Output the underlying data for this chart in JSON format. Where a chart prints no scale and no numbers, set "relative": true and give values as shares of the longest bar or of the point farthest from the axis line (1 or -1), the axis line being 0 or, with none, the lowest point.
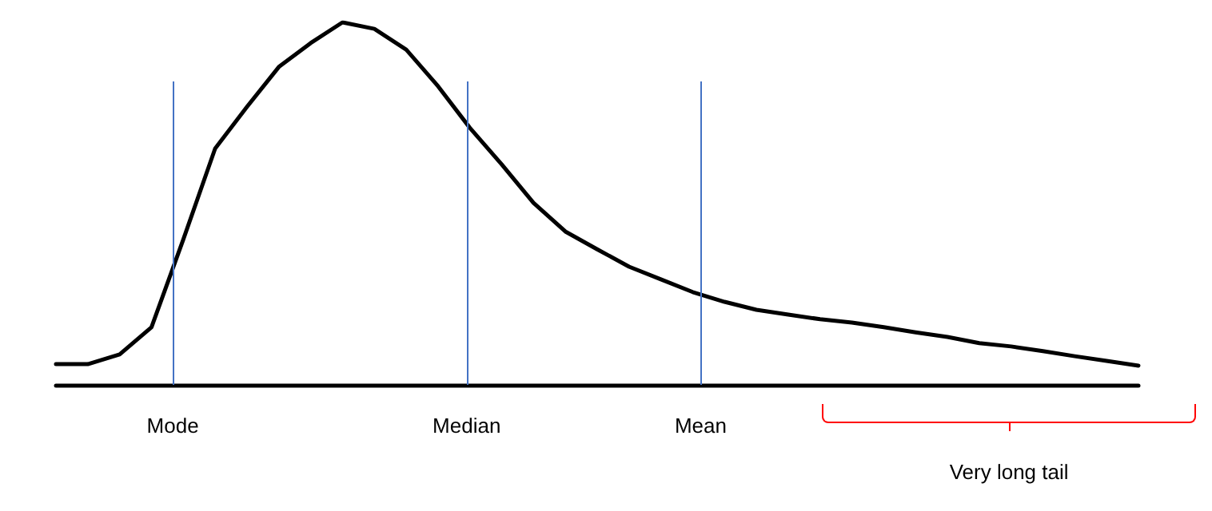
{
  "chart_data": {
    "type": "line",
    "relative": true,
    "marker": "none",
    "line_style": "solid",
    "categories": [
      null,
      null,
      null,
      null,
      null,
      null,
      null,
      null,
      null,
      null,
      null,
      null,
      null,
      null,
      null,
      null,
      null,
      null,
      null,
      null,
      null,
      null,
      null,
      null,
      null,
      null,
      null,
      null,
      null,
      null,
      null,
      null,
      null,
      null,
      null
    ],
    "series": [
      {
        "color": "#000000",
        "values": [
          0.057,
          0.057,
          0.084,
          0.159,
          0.401,
          0.652,
          0.767,
          0.877,
          0.943,
          1,
          0.982,
          0.925,
          0.824,
          0.709,
          0.608,
          0.502,
          0.423,
          0.374,
          0.326,
          0.291,
          0.256,
          0.229,
          0.207,
          0.194,
          0.181,
          0.172,
          0.159,
          0.145,
          0.132,
          0.115,
          0.106,
          0.093,
          0.079,
          0.066,
          0.053
        ]
      }
    ],
    "annotations": [
      "Mode",
      "Median",
      "Mean",
      "Very long tail"
    ]
  }
}
